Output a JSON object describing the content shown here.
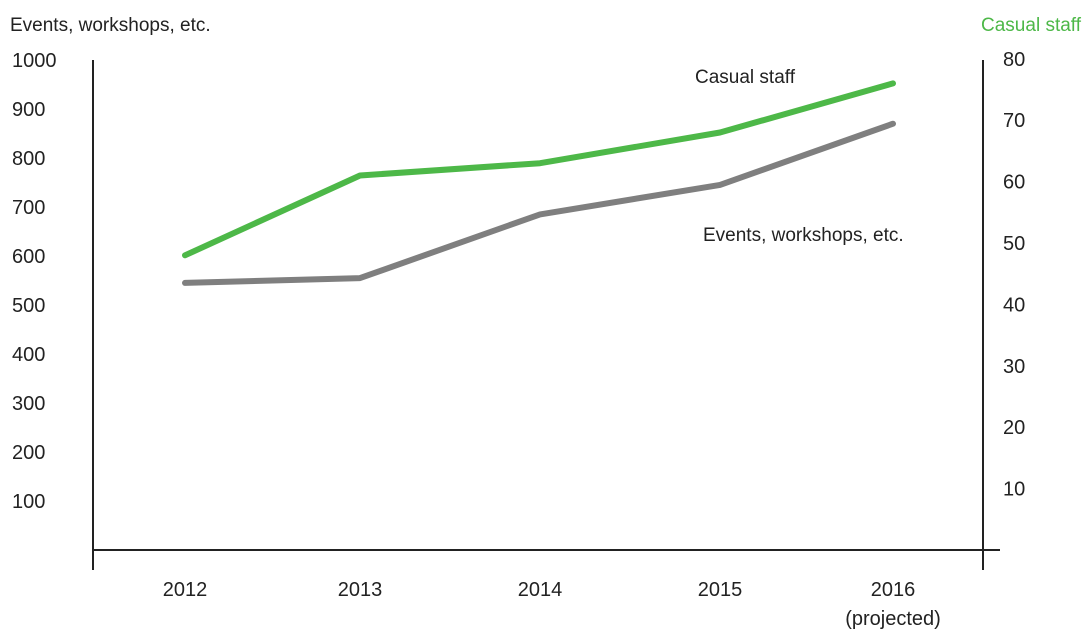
{
  "chart_data": {
    "type": "line",
    "categories": [
      "2012",
      "2013",
      "2014",
      "2015",
      "2016"
    ],
    "category_sublabels": [
      "",
      "",
      "",
      "",
      "(projected)"
    ],
    "left_axis": {
      "title": "Events, workshops, etc.",
      "ylim": [
        0,
        1000
      ],
      "ticks": [
        "100",
        "200",
        "300",
        "400",
        "500",
        "600",
        "700",
        "800",
        "900",
        "1000"
      ],
      "tick_values": [
        100,
        200,
        300,
        400,
        500,
        600,
        700,
        800,
        900,
        1000
      ]
    },
    "right_axis": {
      "title": "Casual staff",
      "ylim": [
        0,
        80
      ],
      "ticks": [
        "10",
        "20",
        "30",
        "40",
        "50",
        "60",
        "70",
        "80"
      ],
      "tick_values": [
        10,
        20,
        30,
        40,
        50,
        60,
        70,
        80
      ]
    },
    "series": [
      {
        "name": "Casual staff",
        "axis": "right",
        "color": "#4db848",
        "values": [
          48,
          61,
          63,
          68,
          76
        ]
      },
      {
        "name": "Events, workshops, etc.",
        "axis": "left",
        "color": "#7f7f7f",
        "values": [
          545,
          555,
          685,
          745,
          870
        ]
      }
    ],
    "grid": false,
    "legend": "inline labels"
  }
}
